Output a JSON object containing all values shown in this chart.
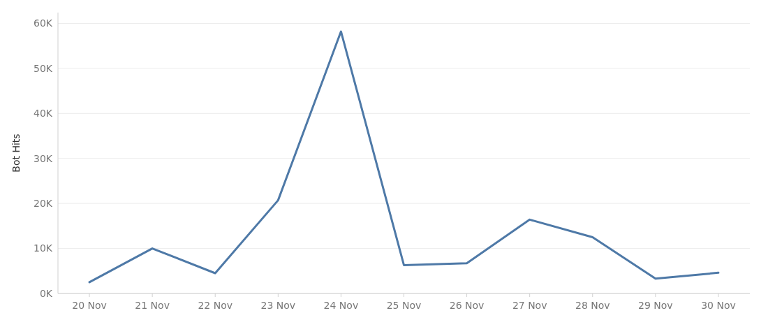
{
  "chart_data": {
    "type": "line",
    "ylabel": "Bot Hits",
    "categories": [
      "20 Nov",
      "21 Nov",
      "22 Nov",
      "23 Nov",
      "24 Nov",
      "25 Nov",
      "26 Nov",
      "27 Nov",
      "28 Nov",
      "29 Nov",
      "30 Nov"
    ],
    "series": [
      {
        "color": "#4e79a7",
        "values": [
          2500,
          10000,
          4500,
          20700,
          58200,
          6300,
          6700,
          16400,
          12500,
          3300,
          4600
        ]
      }
    ],
    "ylim": [
      0,
      62400
    ],
    "yticks": [
      {
        "value": 0,
        "label": "0K"
      },
      {
        "value": 10000,
        "label": "10K"
      },
      {
        "value": 20000,
        "label": "20K"
      },
      {
        "value": 30000,
        "label": "30K"
      },
      {
        "value": 40000,
        "label": "40K"
      },
      {
        "value": 50000,
        "label": "50K"
      },
      {
        "value": 60000,
        "label": "60K"
      }
    ],
    "grid": "y",
    "marker": "none",
    "line_style": "solid"
  }
}
